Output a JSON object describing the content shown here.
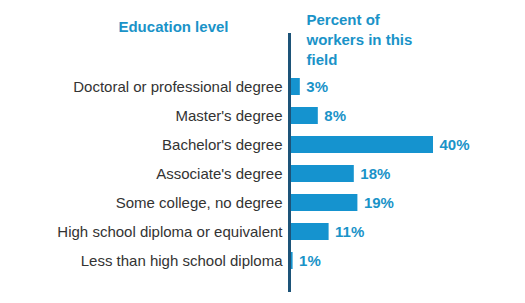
{
  "chart_data": {
    "type": "bar",
    "orientation": "horizontal",
    "ylabel": "Education level",
    "xlabel": "Percent of workers in this field",
    "categories": [
      "Doctoral or professional degree",
      "Master's degree",
      "Bachelor's degree",
      "Associate's degree",
      "Some college, no degree",
      "High school diploma or equivalent",
      "Less than high school diploma"
    ],
    "values": [
      3,
      8,
      40,
      18,
      19,
      11,
      1
    ],
    "value_labels": [
      "3%",
      "8%",
      "40%",
      "18%",
      "19%",
      "11%",
      "1%"
    ],
    "color": "#1593cf",
    "xlim": [
      0,
      40
    ],
    "xticks": [],
    "tick_labels": "y",
    "data_labels": true,
    "grid": false
  }
}
